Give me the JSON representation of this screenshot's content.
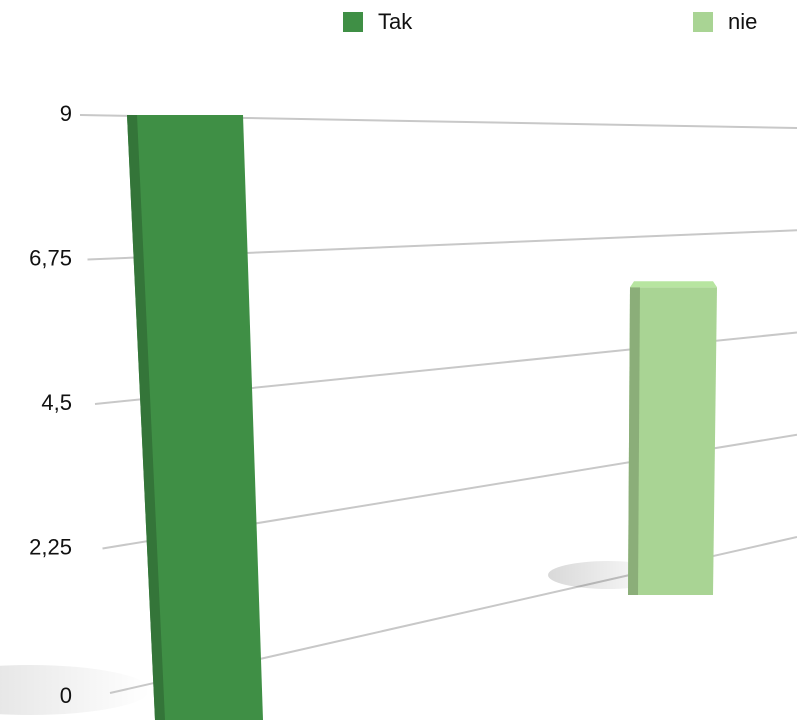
{
  "chart_data": {
    "type": "bar3d",
    "series": [
      {
        "name": "Tak",
        "color": "#3f8f45",
        "values": [
          9
        ]
      },
      {
        "name": "nie",
        "color": "#a9d494",
        "values": [
          6
        ]
      }
    ],
    "ylim": [
      0,
      9
    ],
    "yticks": [
      0,
      {
        "value": 2.25,
        "label": "2,25"
      },
      {
        "value": 4.5,
        "label": "4,5"
      },
      {
        "value": 6.75,
        "label": "6,75"
      },
      9
    ],
    "grid": true,
    "legend": "top"
  }
}
